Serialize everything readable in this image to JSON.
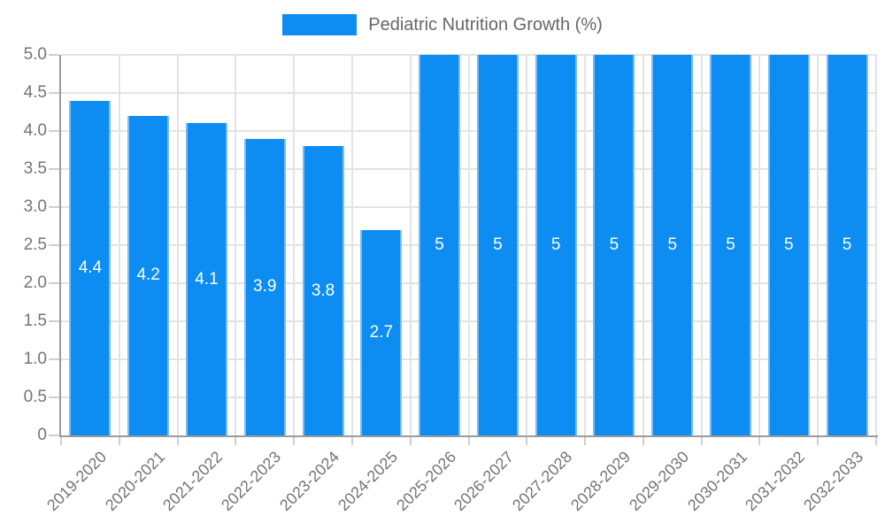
{
  "legend": {
    "label": "Pediatric Nutrition Growth (%)"
  },
  "chart_data": {
    "type": "bar",
    "title": "",
    "xlabel": "",
    "ylabel": "",
    "categories": [
      "2019-2020",
      "2020-2021",
      "2021-2022",
      "2022-2023",
      "2023-2024",
      "2024-2025",
      "2025-2026",
      "2026-2027",
      "2027-2028",
      "2028-2029",
      "2029-2030",
      "2030-2031",
      "2031-2032",
      "2032-2033"
    ],
    "values": [
      4.4,
      4.2,
      4.1,
      3.9,
      3.8,
      2.7,
      5,
      5,
      5,
      5,
      5,
      5,
      5,
      5
    ],
    "value_labels": [
      "4.4",
      "4.2",
      "4.1",
      "3.9",
      "3.8",
      "2.7",
      "5",
      "5",
      "5",
      "5",
      "5",
      "5",
      "5",
      "5"
    ],
    "ylim": [
      0,
      5
    ],
    "ytick_labels": [
      "5.0",
      "4.5",
      "4.0",
      "3.5",
      "3.0",
      "2.5",
      "2.0",
      "1.5",
      "1.0",
      "0.5",
      "0"
    ],
    "grid": true,
    "legend_position": "top",
    "series_name": "Pediatric Nutrition Growth (%)",
    "colors": {
      "bar_fill": "#0d8cf2",
      "bar_edge": "#7abdf6",
      "value_label": "#ffffff",
      "grid_line": "#e3e3e3",
      "axis_line": "#9b9b9b",
      "tick_mark": "#cfcfcf",
      "tick_text": "#757575",
      "legend_text": "#666666",
      "background": "#ffffff"
    }
  }
}
